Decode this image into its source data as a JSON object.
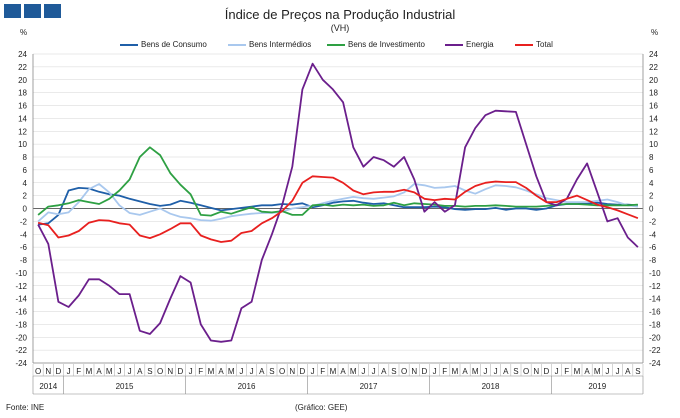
{
  "header": {
    "title": "Índice de Preços na Produção Industrial",
    "subtitle": "(VH)",
    "unit_left": "%",
    "unit_right": "%"
  },
  "footer": {
    "source": "Fonte: INE",
    "credit": "(Gráfico: GEE)"
  },
  "chart_data": {
    "type": "line",
    "title": "Índice de Preços na Produção Industrial",
    "subtitle": "(VH)",
    "ylabel": "%",
    "ylim": [
      -24,
      24
    ],
    "ytick_step": 2,
    "grid": "horizontal",
    "legend_position": "top",
    "x_months": [
      "O",
      "N",
      "D",
      "J",
      "F",
      "M",
      "A",
      "M",
      "J",
      "J",
      "A",
      "S",
      "O",
      "N",
      "D",
      "J",
      "F",
      "M",
      "A",
      "M",
      "J",
      "J",
      "A",
      "S",
      "O",
      "N",
      "D",
      "J",
      "F",
      "M",
      "A",
      "M",
      "J",
      "J",
      "A",
      "S",
      "O",
      "N",
      "D",
      "J",
      "F",
      "M",
      "A",
      "M",
      "J",
      "J",
      "A",
      "S",
      "O",
      "N",
      "D",
      "J",
      "F",
      "M",
      "A",
      "M",
      "J",
      "J",
      "A",
      "S"
    ],
    "x_years": [
      {
        "label": "2014",
        "start": 0,
        "end": 2
      },
      {
        "label": "2015",
        "start": 3,
        "end": 14
      },
      {
        "label": "2016",
        "start": 15,
        "end": 26
      },
      {
        "label": "2017",
        "start": 27,
        "end": 38
      },
      {
        "label": "2018",
        "start": 39,
        "end": 50
      },
      {
        "label": "2019",
        "start": 51,
        "end": 59
      }
    ],
    "series": [
      {
        "name": "Bens de Consumo",
        "color": "#1f5fa8",
        "values": [
          -2.5,
          -2.3,
          -1.0,
          2.8,
          3.2,
          3.1,
          2.6,
          2.2,
          2.0,
          1.5,
          1.1,
          0.7,
          0.4,
          0.6,
          1.2,
          0.9,
          0.5,
          0.1,
          -0.3,
          -0.1,
          0.1,
          0.3,
          0.5,
          0.5,
          0.7,
          0.6,
          0.8,
          0.2,
          0.5,
          0.9,
          1.1,
          1.2,
          0.9,
          0.7,
          0.8,
          0.5,
          0.2,
          0.2,
          0.2,
          0.3,
          0.2,
          -0.1,
          -0.2,
          -0.1,
          -0.1,
          0.1,
          -0.2,
          0.0,
          0.0,
          -0.2,
          0.0,
          0.5,
          0.7,
          0.7,
          0.8,
          0.9,
          0.7,
          0.6,
          0.6,
          0.5
        ]
      },
      {
        "name": "Bens Intermédios",
        "color": "#a9c8ee",
        "values": [
          -2.0,
          -0.6,
          -0.9,
          -0.6,
          1.0,
          3.0,
          3.8,
          2.5,
          0.5,
          -0.7,
          -1.0,
          -0.5,
          0.0,
          -0.8,
          -1.3,
          -1.5,
          -1.8,
          -1.9,
          -1.6,
          -1.2,
          -1.0,
          -0.8,
          -0.7,
          -0.7,
          -0.5,
          0.0,
          0.2,
          0.4,
          0.8,
          1.2,
          1.5,
          1.8,
          1.6,
          1.5,
          1.7,
          1.9,
          2.5,
          3.8,
          3.6,
          3.2,
          3.3,
          3.5,
          2.8,
          2.3,
          3.0,
          3.6,
          3.5,
          3.3,
          2.8,
          2.2,
          1.6,
          1.3,
          1.0,
          1.0,
          1.0,
          1.2,
          1.4,
          1.0,
          0.5,
          0.3
        ]
      },
      {
        "name": "Bens de Investimento",
        "color": "#2ea043",
        "values": [
          -1.0,
          0.3,
          0.5,
          0.8,
          1.3,
          1.0,
          0.7,
          1.5,
          2.8,
          4.5,
          8.0,
          9.5,
          8.3,
          5.5,
          3.7,
          2.2,
          -1.0,
          -1.1,
          -0.5,
          -0.8,
          -0.3,
          0.2,
          -0.5,
          -0.6,
          -0.4,
          -1.0,
          -1.0,
          0.5,
          0.6,
          0.4,
          0.6,
          0.5,
          0.6,
          0.4,
          0.5,
          0.9,
          0.5,
          0.8,
          0.7,
          0.6,
          0.4,
          0.4,
          0.3,
          0.4,
          0.4,
          0.5,
          0.4,
          0.3,
          0.3,
          0.3,
          0.4,
          0.6,
          0.7,
          0.7,
          0.6,
          0.5,
          0.5,
          0.5,
          0.5,
          0.6
        ]
      },
      {
        "name": "Energia",
        "color": "#6b1f8c",
        "values": [
          -2.5,
          -5.5,
          -14.5,
          -15.3,
          -13.5,
          -11.0,
          -11.0,
          -12.0,
          -13.3,
          -13.3,
          -19.0,
          -19.5,
          -17.8,
          -14.0,
          -10.5,
          -11.5,
          -18.0,
          -20.5,
          -20.7,
          -20.5,
          -15.5,
          -14.5,
          -8.0,
          -4.0,
          0.5,
          6.5,
          18.5,
          22.5,
          20.0,
          18.5,
          16.5,
          9.5,
          6.5,
          8.0,
          7.5,
          6.5,
          8.0,
          4.5,
          -0.5,
          1.0,
          -0.5,
          0.5,
          9.5,
          12.5,
          14.5,
          15.2,
          15.1,
          15.0,
          10.0,
          5.0,
          1.0,
          0.5,
          1.5,
          4.5,
          7.0,
          2.5,
          -2.0,
          -1.5,
          -4.5,
          -6.0
        ]
      },
      {
        "name": "Total",
        "color": "#e8201f",
        "values": [
          -2.2,
          -2.6,
          -4.5,
          -4.2,
          -3.5,
          -2.2,
          -1.8,
          -1.9,
          -2.3,
          -2.5,
          -4.2,
          -4.6,
          -4.0,
          -3.2,
          -2.3,
          -2.3,
          -4.2,
          -4.8,
          -5.2,
          -5.0,
          -3.8,
          -3.5,
          -2.3,
          -1.5,
          -0.4,
          1.2,
          4.0,
          5.0,
          4.9,
          4.8,
          4.0,
          2.8,
          2.2,
          2.5,
          2.6,
          2.6,
          2.9,
          2.5,
          1.5,
          1.3,
          1.5,
          1.4,
          2.6,
          3.5,
          4.0,
          4.2,
          4.1,
          4.1,
          3.2,
          2.0,
          1.0,
          1.0,
          1.5,
          2.0,
          1.3,
          0.6,
          0.2,
          -0.3,
          -0.9,
          -1.5
        ]
      }
    ]
  }
}
